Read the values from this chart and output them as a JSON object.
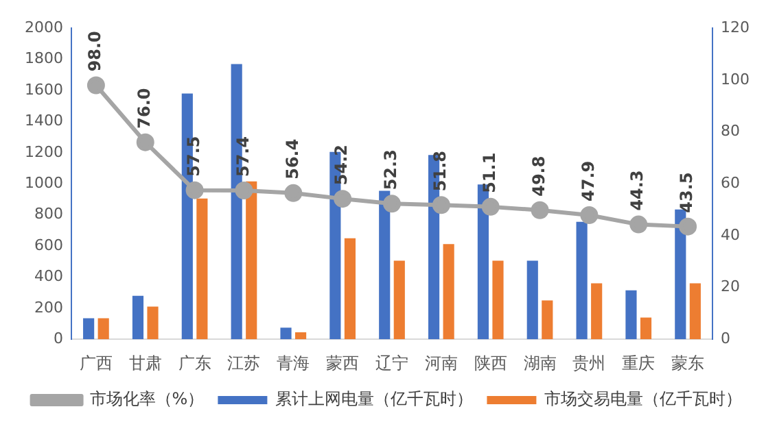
{
  "chart_data": {
    "type": "bar",
    "categories": [
      "广西",
      "甘肃",
      "广东",
      "江苏",
      "青海",
      "蒙西",
      "辽宁",
      "河南",
      "陕西",
      "湖南",
      "贵州",
      "重庆",
      "蒙东"
    ],
    "series": [
      {
        "name": "累计上网电量（亿千瓦时）",
        "color": "#4472c4",
        "values": [
          135,
          280,
          1580,
          1770,
          75,
          1205,
          955,
          1185,
          995,
          505,
          755,
          315,
          835
        ]
      },
      {
        "name": "市场交易电量（亿千瓦时）",
        "color": "#ed7d31",
        "values": [
          135,
          210,
          905,
          1015,
          45,
          650,
          505,
          612,
          505,
          250,
          360,
          140,
          360
        ]
      },
      {
        "name": "市场化率（%）",
        "type": "line",
        "axis": "y2",
        "color": "#a5a5a5",
        "marker": "circle",
        "values": [
          98.0,
          76.0,
          57.5,
          57.4,
          56.4,
          54.2,
          52.3,
          51.8,
          51.1,
          49.8,
          47.9,
          44.3,
          43.5
        ],
        "value_labels": [
          "98.0",
          "76.0",
          "57.5",
          "57.4",
          "56.4",
          "54.2",
          "52.3",
          "51.8",
          "51.1",
          "49.8",
          "47.9",
          "44.3",
          "43.5"
        ]
      }
    ],
    "ylim": [
      0,
      2000
    ],
    "yticks": [
      0,
      200,
      400,
      600,
      800,
      1000,
      1200,
      1400,
      1600,
      1800,
      2000
    ],
    "y2lim": [
      0,
      120
    ],
    "y2ticks": [
      0,
      20,
      40,
      60,
      80,
      100,
      120
    ],
    "grid": false,
    "legend": "bottom"
  }
}
